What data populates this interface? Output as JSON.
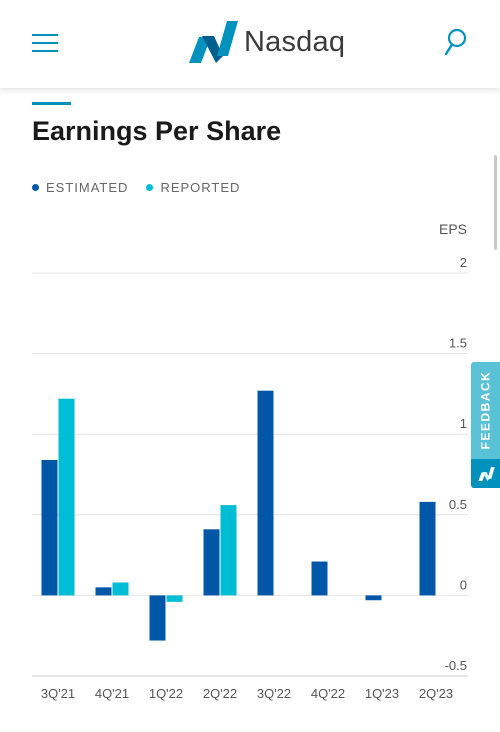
{
  "header": {
    "logo_text": "Nasdaq",
    "menu_icon": "hamburger-menu-icon",
    "search_icon": "search-icon",
    "brand_color": "#0092bc"
  },
  "section": {
    "title": "Earnings Per Share"
  },
  "legend": {
    "estimated": "ESTIMATED",
    "reported": "REPORTED"
  },
  "feedback": {
    "label": "FEEDBACK"
  },
  "chart_data": {
    "type": "bar",
    "title": "Earnings Per Share",
    "ylabel": "EPS",
    "xlabel": "",
    "categories": [
      "3Q'21",
      "4Q'21",
      "1Q'22",
      "2Q'22",
      "3Q'22",
      "4Q'22",
      "1Q'23",
      "2Q'23"
    ],
    "series": [
      {
        "name": "ESTIMATED",
        "color": "#0057a8",
        "values": [
          0.84,
          0.05,
          -0.28,
          0.41,
          1.27,
          0.21,
          -0.03,
          0.58
        ]
      },
      {
        "name": "REPORTED",
        "color": "#00bdd6",
        "values": [
          1.22,
          0.08,
          -0.04,
          0.56,
          null,
          null,
          null,
          null
        ]
      }
    ],
    "ylim": [
      -0.5,
      2
    ],
    "yticks": [
      {
        "value": 2,
        "label": "2"
      },
      {
        "value": 1.5,
        "label": "1.5"
      },
      {
        "value": 1,
        "label": "1"
      },
      {
        "value": 0.5,
        "label": "0.5"
      },
      {
        "value": 0,
        "label": "0"
      },
      {
        "value": -0.5,
        "label": "-0.5"
      }
    ],
    "grid": true,
    "legend_position": "top-left"
  }
}
